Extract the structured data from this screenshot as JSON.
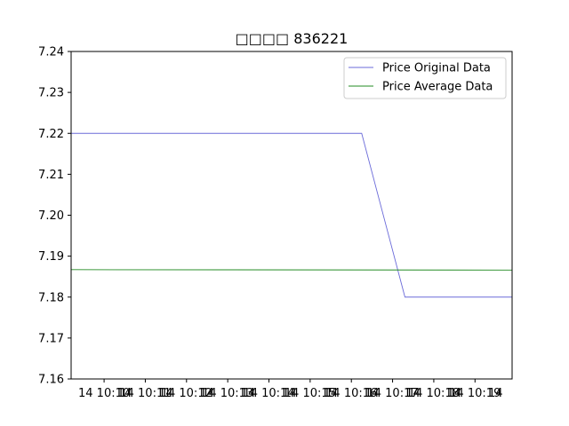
{
  "chart_data": {
    "type": "line",
    "title": "□□□□  836221",
    "xlabel": "",
    "ylabel": "",
    "ylim": [
      7.16,
      7.24
    ],
    "yticks": [
      7.16,
      7.17,
      7.18,
      7.19,
      7.2,
      7.21,
      7.22,
      7.23,
      7.24
    ],
    "ytick_labels": [
      "7.16",
      "7.17",
      "7.18",
      "7.19",
      "7.20",
      "7.21",
      "7.22",
      "7.23",
      "7.24"
    ],
    "xlim": [
      -0.8,
      9.9
    ],
    "xtick_labels_primary": [
      "14 10:10",
      "14 10:11",
      "14 10:12",
      "14 10:13",
      "14 10:14",
      "14 10:15",
      "14 10:16",
      "14 10:17",
      "14 10:18",
      "14 10:19"
    ],
    "xtick_labels_overlay": [
      "14",
      "14",
      "14",
      "14",
      "14",
      "14",
      "14",
      "14",
      "14",
      "14"
    ],
    "grid": false,
    "legend_position": "top-right",
    "series": [
      {
        "name": "Price Original Data",
        "color": "#6b6bd9",
        "x": [
          -0.8,
          6.25,
          7.3,
          9.9
        ],
        "y": [
          7.22,
          7.22,
          7.18,
          7.18
        ]
      },
      {
        "name": "Price Average Data",
        "color": "#238b23",
        "x": [
          -0.8,
          9.9
        ],
        "y": [
          7.1867,
          7.1866
        ]
      }
    ]
  }
}
